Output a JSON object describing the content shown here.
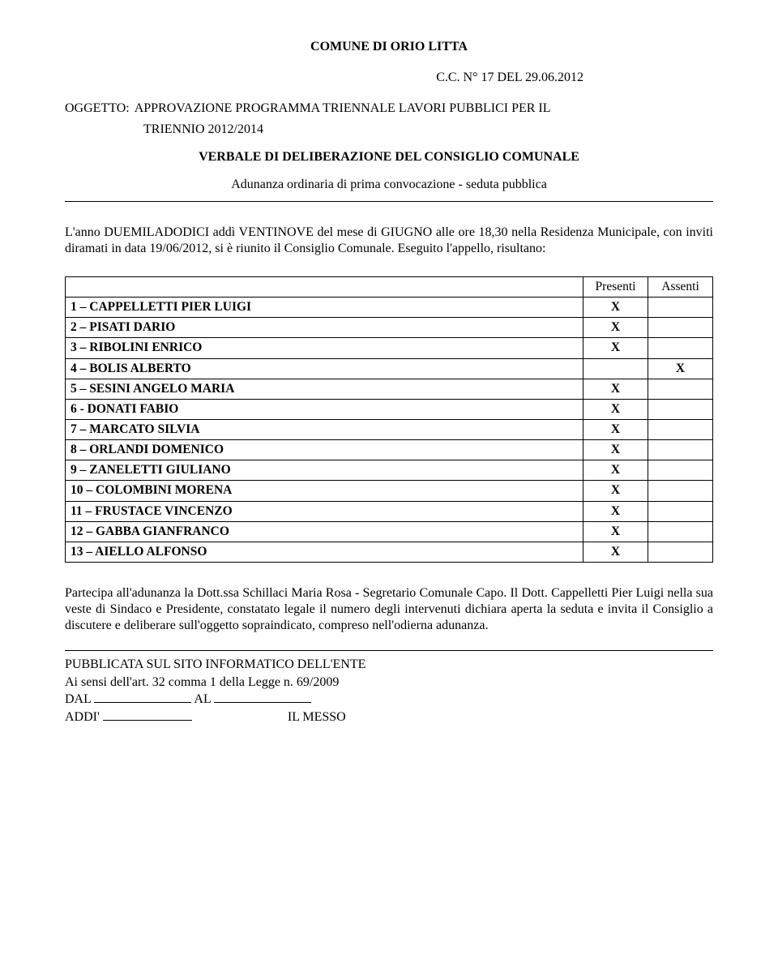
{
  "header_title": "COMUNE DI ORIO LITTA",
  "doc_number": "C.C. N° 17 DEL 29.06.2012",
  "oggetto_label": "OGGETTO:",
  "oggetto_line1": "APPROVAZIONE PROGRAMMA TRIENNALE LAVORI PUBBLICI PER IL",
  "oggetto_line2": "TRIENNIO 2012/2014",
  "verbale": "VERBALE DI DELIBERAZIONE DEL CONSIGLIO COMUNALE",
  "adunanza": "Adunanza ordinaria di prima convocazione - seduta pubblica",
  "intro": "L'anno DUEMILADODICI addì VENTINOVE del mese di GIUGNO alle ore 18,30 nella Residenza Municipale, con inviti diramati in data 19/06/2012, si è riunito il Consiglio Comunale. Eseguito l'appello, risultano:",
  "table": {
    "col_presenti": "Presenti",
    "col_assenti": "Assenti",
    "rows": [
      {
        "name": "1 – CAPPELLETTI PIER LUIGI",
        "presenti": "X",
        "assenti": ""
      },
      {
        "name": "2 – PISATI DARIO",
        "presenti": "X",
        "assenti": ""
      },
      {
        "name": "3 – RIBOLINI ENRICO",
        "presenti": "X",
        "assenti": ""
      },
      {
        "name": "4 – BOLIS ALBERTO",
        "presenti": "",
        "assenti": "X"
      },
      {
        "name": "5 – SESINI ANGELO MARIA",
        "presenti": "X",
        "assenti": ""
      },
      {
        "name": "6  - DONATI FABIO",
        "presenti": "X",
        "assenti": ""
      },
      {
        "name": "7 – MARCATO SILVIA",
        "presenti": "X",
        "assenti": ""
      },
      {
        "name": "8 – ORLANDI DOMENICO",
        "presenti": "X",
        "assenti": ""
      },
      {
        "name": "9 – ZANELETTI GIULIANO",
        "presenti": "X",
        "assenti": ""
      },
      {
        "name": "10 – COLOMBINI MORENA",
        "presenti": "X",
        "assenti": ""
      },
      {
        "name": "11 – FRUSTACE VINCENZO",
        "presenti": "X",
        "assenti": ""
      },
      {
        "name": "12 – GABBA GIANFRANCO",
        "presenti": "X",
        "assenti": ""
      },
      {
        "name": "13 – AIELLO ALFONSO",
        "presenti": "X",
        "assenti": ""
      }
    ]
  },
  "participa": "Partecipa all'adunanza la Dott.ssa Schillaci Maria Rosa - Segretario Comunale Capo. Il Dott. Cappelletti Pier Luigi nella sua veste di Sindaco e Presidente, constatato legale il numero degli intervenuti dichiara aperta la seduta e invita il Consiglio a discutere e deliberare sull'oggetto sopraindicato, compreso nell'odierna adunanza.",
  "pub_line1": "PUBBLICATA SUL SITO INFORMATICO DELL'ENTE",
  "pub_line2": "Ai sensi dell'art. 32 comma 1 della Legge n. 69/2009",
  "dal_label": "DAL",
  "al_label": "AL",
  "addi_label": "ADDI'",
  "messo_label": "IL MESSO"
}
